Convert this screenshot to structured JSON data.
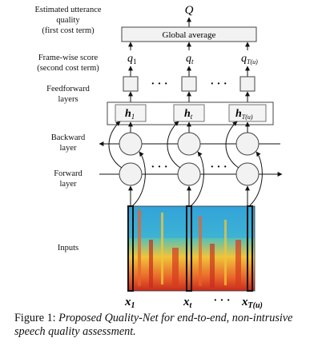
{
  "labels": {
    "estimated_quality": [
      "Estimated  utterance",
      "quality",
      "(first cost term)"
    ],
    "frame_score": [
      "Frame-wise score",
      "(second cost term)"
    ],
    "feedforward": [
      "Feedforward",
      "layers"
    ],
    "backward": [
      "Backward",
      "layer"
    ],
    "forward": [
      "Forward",
      "layer"
    ],
    "inputs": "Inputs"
  },
  "nodes": {
    "output": "Q",
    "global_average": "Global average",
    "q": [
      "q",
      "q",
      "q"
    ],
    "q_sub": [
      "1",
      "t",
      "T(u)"
    ],
    "h": [
      "h",
      "h",
      "h"
    ],
    "h_sub": [
      "1",
      "t",
      "T(u)"
    ],
    "x": [
      "x",
      "x",
      "x"
    ],
    "x_sub": [
      "1",
      "t",
      "T(u)"
    ],
    "ellipsis": "· · ·"
  },
  "caption": {
    "prefix": "Figure 1: ",
    "text": "Proposed Quality-Net for end-to-end, non-intrusive speech quality assessment."
  }
}
